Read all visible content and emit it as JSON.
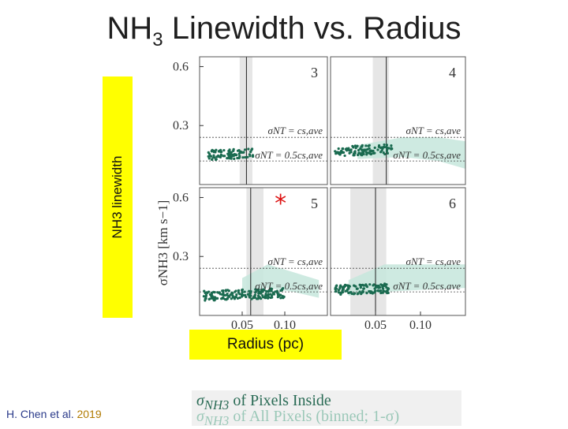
{
  "title_main": "NH",
  "title_sub": "3",
  "title_rest": " Linewidth vs. Radius",
  "ylabel_outer": "NH3 linewidth",
  "xlabel_outer": "Radius (pc)",
  "credit_author": "H. Chen et al.",
  "credit_year": "2019",
  "legend": {
    "symbol": "σ",
    "symbol_sub": "NH3",
    "inside": " of Pixels Inside",
    "all": " of All Pixels (binned; 1-σ)"
  },
  "colors": {
    "points": "#1a6b50",
    "band": "#c5e6dc",
    "shade": "#e6e6e6",
    "highlight": "#ffff00",
    "star": "#dd1111"
  },
  "chart_data": {
    "type": "scatter",
    "panels": [
      {
        "label": "3",
        "xlim": [
          0.0,
          0.15
        ],
        "ylim": [
          0.0,
          0.65
        ],
        "inner_ylabel": "",
        "yticks": [
          0.6,
          0.3
        ],
        "xticks": [],
        "shaded_range": [
          0.047,
          0.062
        ],
        "vline": 0.055,
        "cs_ave": 0.24,
        "half_cs_ave": 0.12,
        "annotations": [
          "σNT = cs,ave",
          "σNT = 0.5cs,ave"
        ],
        "points": {
          "x_range": [
            0.01,
            0.065
          ],
          "y_center": 0.15,
          "count": 90
        },
        "band": []
      },
      {
        "label": "4",
        "xlim": [
          0.0,
          0.15
        ],
        "ylim": [
          0.0,
          0.65
        ],
        "inner_ylabel": "",
        "yticks": [],
        "xticks": [],
        "shaded_range": [
          0.047,
          0.065
        ],
        "vline": 0.062,
        "cs_ave": 0.24,
        "half_cs_ave": 0.12,
        "annotations": [
          "σNT = cs,ave",
          "σNT = 0.5cs,ave"
        ],
        "points": {
          "x_range": [
            0.005,
            0.07
          ],
          "y_center": 0.17,
          "count": 110
        },
        "band": [
          [
            0.03,
            0.13,
            0.2
          ],
          [
            0.08,
            0.14,
            0.24
          ],
          [
            0.12,
            0.12,
            0.24
          ],
          [
            0.15,
            0.08,
            0.22
          ]
        ]
      },
      {
        "label": "5",
        "xlim": [
          0.0,
          0.15
        ],
        "ylim": [
          0.0,
          0.65
        ],
        "inner_ylabel": "σNH3 [km s−1]",
        "yticks": [
          0.6,
          0.3
        ],
        "xticks": [
          0.05,
          0.1
        ],
        "shaded_range": [
          0.055,
          0.075
        ],
        "vline": 0.06,
        "cs_ave": 0.24,
        "half_cs_ave": 0.12,
        "star_x": 0.095,
        "star_y": 0.57,
        "annotations": [
          "σNT = cs,ave",
          "σNT = 0.5cs,ave"
        ],
        "points": {
          "x_range": [
            0.005,
            0.1
          ],
          "y_center": 0.1,
          "count": 180
        },
        "band": [
          [
            0.05,
            0.11,
            0.19
          ],
          [
            0.08,
            0.14,
            0.26
          ],
          [
            0.11,
            0.12,
            0.22
          ],
          [
            0.14,
            0.09,
            0.18
          ]
        ]
      },
      {
        "label": "6",
        "xlim": [
          0.0,
          0.15
        ],
        "ylim": [
          0.0,
          0.65
        ],
        "inner_ylabel": "",
        "yticks": [],
        "xticks": [
          0.05,
          0.1
        ],
        "shaded_range": [
          0.022,
          0.062
        ],
        "vline": 0.05,
        "cs_ave": 0.24,
        "half_cs_ave": 0.12,
        "annotations": [
          "σNT = cs,ave",
          "σNT = 0.5cs,ave"
        ],
        "points": {
          "x_range": [
            0.005,
            0.065
          ],
          "y_center": 0.13,
          "count": 120
        },
        "band": [
          [
            0.02,
            0.1,
            0.18
          ],
          [
            0.06,
            0.12,
            0.26
          ],
          [
            0.1,
            0.13,
            0.26
          ],
          [
            0.15,
            0.14,
            0.26
          ]
        ]
      }
    ]
  }
}
